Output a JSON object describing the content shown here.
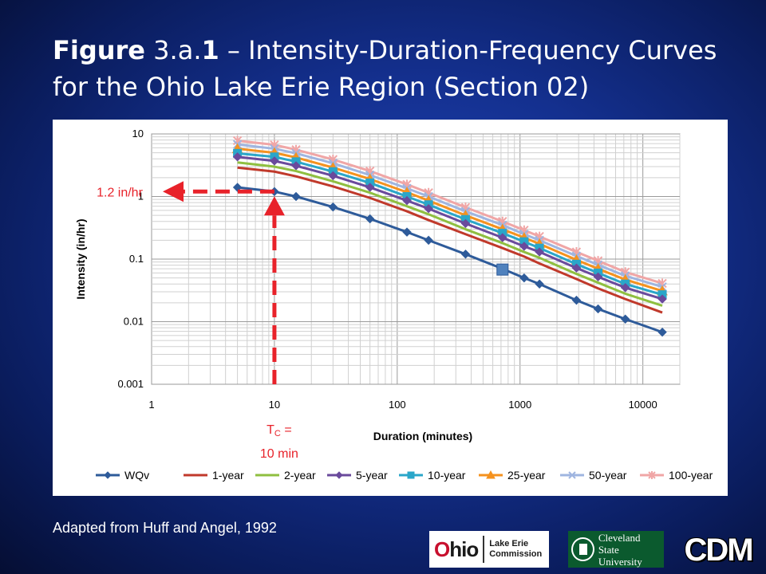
{
  "title": {
    "bold1": "Figure",
    "part1": " 3.a.",
    "bold2": "1",
    "part2": " – Intensity-Duration-Frequency Curves for the Ohio Lake Erie Region (Section 02)"
  },
  "caption": "Adapted from Huff and Angel, 1992",
  "logos": {
    "ohio_word": "hio",
    "ohio_first": "O",
    "commission_line1": "Lake Erie",
    "commission_line2": "Commission",
    "csu_line1": "Cleveland State",
    "csu_line2": "University",
    "cdm": "CDM"
  },
  "annotations": {
    "intensity_label": "1.2 in/hr",
    "tc_label_prefix": "T",
    "tc_label_sub": "C",
    "tc_label_suffix": " =",
    "tc_label_line2": "10 min",
    "arrow_color": "#e8222a",
    "intensity_value": 1.2,
    "tc_value": 10
  },
  "chart_data": {
    "type": "line",
    "xlabel": "Duration (minutes)",
    "ylabel": "Intensity (in/hr)",
    "xscale": "log",
    "yscale": "log",
    "xlim": [
      1,
      20000
    ],
    "ylim": [
      0.001,
      10
    ],
    "xticks": [
      1,
      10,
      100,
      1000,
      10000
    ],
    "xtick_labels": [
      "1",
      "10",
      "100",
      "1000",
      "10000"
    ],
    "yticks": [
      10,
      1,
      0.1,
      0.01,
      0.001
    ],
    "ytick_labels": [
      "10",
      "1",
      "0.1",
      "0.01",
      "0.001"
    ],
    "grid": true,
    "legend_position": "bottom",
    "x": [
      5,
      10,
      15,
      30,
      60,
      120,
      180,
      360,
      720,
      1080,
      1440,
      2880,
      4320,
      7200,
      14400
    ],
    "series": [
      {
        "name": "WQv",
        "color": "#2e5b9a",
        "marker": "diamond",
        "values": [
          1.4,
          1.2,
          1.0,
          0.68,
          0.44,
          0.27,
          0.2,
          0.12,
          0.07,
          0.05,
          0.04,
          0.022,
          0.016,
          0.011,
          0.0068
        ]
      },
      {
        "name": "1-year",
        "color": "#c0392b",
        "marker": "none",
        "values": [
          2.9,
          2.5,
          2.1,
          1.45,
          0.95,
          0.58,
          0.42,
          0.25,
          0.15,
          0.11,
          0.085,
          0.048,
          0.034,
          0.023,
          0.014
        ]
      },
      {
        "name": "2-year",
        "color": "#8fbf40",
        "marker": "none",
        "values": [
          3.5,
          3.0,
          2.55,
          1.75,
          1.15,
          0.7,
          0.52,
          0.3,
          0.18,
          0.13,
          0.105,
          0.058,
          0.042,
          0.028,
          0.018
        ]
      },
      {
        "name": "5-year",
        "color": "#6a4a9c",
        "marker": "diamond",
        "values": [
          4.3,
          3.7,
          3.1,
          2.15,
          1.4,
          0.86,
          0.64,
          0.37,
          0.22,
          0.16,
          0.13,
          0.072,
          0.052,
          0.035,
          0.023
        ]
      },
      {
        "name": "10-year",
        "color": "#2aa6c9",
        "marker": "square",
        "values": [
          4.9,
          4.3,
          3.6,
          2.5,
          1.65,
          1.0,
          0.74,
          0.43,
          0.26,
          0.19,
          0.15,
          0.083,
          0.06,
          0.04,
          0.027
        ]
      },
      {
        "name": "25-year",
        "color": "#f5921e",
        "marker": "triangle",
        "values": [
          5.8,
          5.0,
          4.2,
          2.9,
          1.9,
          1.17,
          0.86,
          0.5,
          0.3,
          0.22,
          0.175,
          0.097,
          0.07,
          0.047,
          0.031
        ]
      },
      {
        "name": "50-year",
        "color": "#9fb5e0",
        "marker": "x",
        "values": [
          6.8,
          5.8,
          4.9,
          3.4,
          2.2,
          1.35,
          1.0,
          0.58,
          0.35,
          0.25,
          0.2,
          0.112,
          0.081,
          0.054,
          0.036
        ]
      },
      {
        "name": "100-year",
        "color": "#f0a6a6",
        "marker": "star",
        "values": [
          7.8,
          6.7,
          5.6,
          3.9,
          2.55,
          1.56,
          1.15,
          0.67,
          0.4,
          0.29,
          0.23,
          0.13,
          0.094,
          0.062,
          0.041
        ]
      }
    ],
    "highlight_point": {
      "series": "WQv",
      "x": 720,
      "y": 0.068
    }
  }
}
